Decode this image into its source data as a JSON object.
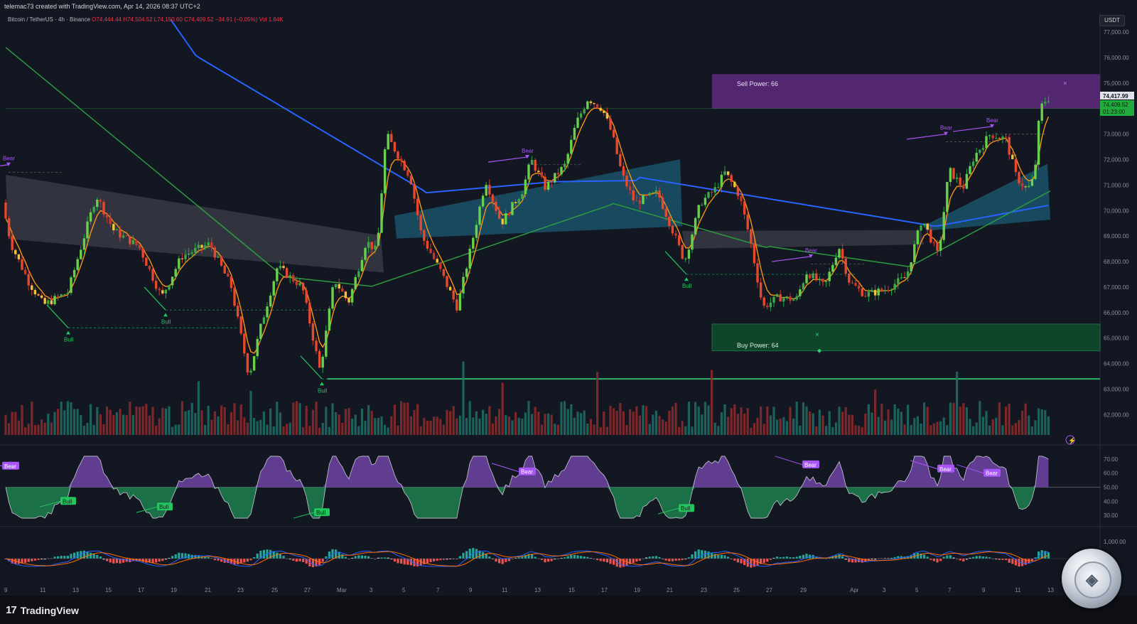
{
  "header": {
    "attribution": "telemac73 created with TradingView.com, Apr 14, 2026 08:37 UTC+2"
  },
  "legend": {
    "symbol": "Bitcoin / TetherUS · 4h · Binance",
    "ohlc": "O74,444.44 H74,504.52 L74,150.60 C74,409.52 −34.91 (−0.05%) Vol 1.64K"
  },
  "currency_badge": "USDT",
  "price_tags": {
    "upper": "74,417.99",
    "current": "74,409.52",
    "countdown": "01:23:00"
  },
  "zones": {
    "sell": "Sell Power: 66",
    "buy": "Buy Power: 64"
  },
  "footer": {
    "brand": "TradingView",
    "logo_mark": "17"
  },
  "colors": {
    "background": "#131722",
    "bull_candle": "#22ab3d",
    "bear_candle": "#d63a2f",
    "ema_fast": "#f7931a",
    "sma_slow": "#2962ff",
    "ma_mid": "#2e9a3f",
    "sell_zone": "#5e2a7e",
    "buy_zone": "#0f4a2c",
    "cloud_gray": "#4a4d57",
    "cloud_teal": "#1b5f78",
    "label_bull": "#22c55e",
    "label_bear": "#a855f7"
  },
  "chart_data": [
    {
      "type": "candlestick",
      "title": "Bitcoin / TetherUS · 4h · Binance",
      "y_axis_labels": [
        "77,000.00",
        "76,000.00",
        "75,000.00",
        "74,000.00",
        "73,000.00",
        "72,000.00",
        "71,000.00",
        "70,000.00",
        "69,000.00",
        "68,000.00",
        "67,000.00",
        "66,000.00",
        "65,000.00",
        "64,000.00",
        "63,000.00",
        "62,000.00"
      ],
      "ylim": [
        61200,
        77200
      ],
      "x_tick_labels": [
        "9",
        "11",
        "13",
        "15",
        "17",
        "19",
        "21",
        "23",
        "25",
        "27",
        "Mar",
        "3",
        "5",
        "7",
        "9",
        "11",
        "13",
        "15",
        "17",
        "19",
        "21",
        "23",
        "25",
        "27",
        "29",
        "Apr",
        "3",
        "5",
        "7",
        "9",
        "11",
        "13"
      ],
      "trend_anchors": [
        {
          "x": 0,
          "y": 71400
        },
        {
          "x": 20,
          "y": 68700
        },
        {
          "x": 45,
          "y": 67200
        },
        {
          "x": 66,
          "y": 66300
        },
        {
          "x": 100,
          "y": 66800
        },
        {
          "x": 140,
          "y": 70600
        },
        {
          "x": 165,
          "y": 69200
        },
        {
          "x": 200,
          "y": 68600
        },
        {
          "x": 232,
          "y": 66600
        },
        {
          "x": 260,
          "y": 68200
        },
        {
          "x": 300,
          "y": 68700
        },
        {
          "x": 330,
          "y": 67000
        },
        {
          "x": 355,
          "y": 63500
        },
        {
          "x": 372,
          "y": 65500
        },
        {
          "x": 395,
          "y": 67800
        },
        {
          "x": 430,
          "y": 67000
        },
        {
          "x": 455,
          "y": 63700
        },
        {
          "x": 475,
          "y": 67300
        },
        {
          "x": 495,
          "y": 66400
        },
        {
          "x": 520,
          "y": 68800
        },
        {
          "x": 535,
          "y": 68400
        },
        {
          "x": 548,
          "y": 73000
        },
        {
          "x": 562,
          "y": 72300
        },
        {
          "x": 582,
          "y": 71300
        },
        {
          "x": 598,
          "y": 69000
        },
        {
          "x": 625,
          "y": 67600
        },
        {
          "x": 648,
          "y": 66200
        },
        {
          "x": 666,
          "y": 68400
        },
        {
          "x": 688,
          "y": 71200
        },
        {
          "x": 710,
          "y": 69500
        },
        {
          "x": 740,
          "y": 70800
        },
        {
          "x": 752,
          "y": 72000
        },
        {
          "x": 772,
          "y": 70900
        },
        {
          "x": 800,
          "y": 71800
        },
        {
          "x": 815,
          "y": 73400
        },
        {
          "x": 832,
          "y": 74400
        },
        {
          "x": 852,
          "y": 74000
        },
        {
          "x": 866,
          "y": 73000
        },
        {
          "x": 880,
          "y": 71400
        },
        {
          "x": 898,
          "y": 70300
        },
        {
          "x": 930,
          "y": 70700
        },
        {
          "x": 950,
          "y": 69300
        },
        {
          "x": 968,
          "y": 68000
        },
        {
          "x": 990,
          "y": 70300
        },
        {
          "x": 1010,
          "y": 70800
        },
        {
          "x": 1025,
          "y": 71500
        },
        {
          "x": 1045,
          "y": 70600
        },
        {
          "x": 1060,
          "y": 68900
        },
        {
          "x": 1078,
          "y": 66200
        },
        {
          "x": 1100,
          "y": 66600
        },
        {
          "x": 1125,
          "y": 66500
        },
        {
          "x": 1140,
          "y": 67600
        },
        {
          "x": 1165,
          "y": 67000
        },
        {
          "x": 1185,
          "y": 68600
        },
        {
          "x": 1200,
          "y": 67200
        },
        {
          "x": 1222,
          "y": 66700
        },
        {
          "x": 1250,
          "y": 66900
        },
        {
          "x": 1280,
          "y": 67400
        },
        {
          "x": 1302,
          "y": 69700
        },
        {
          "x": 1325,
          "y": 68200
        },
        {
          "x": 1340,
          "y": 71600
        },
        {
          "x": 1360,
          "y": 70900
        },
        {
          "x": 1375,
          "y": 72100
        },
        {
          "x": 1398,
          "y": 73000
        },
        {
          "x": 1420,
          "y": 72800
        },
        {
          "x": 1435,
          "y": 71300
        },
        {
          "x": 1450,
          "y": 70800
        },
        {
          "x": 1460,
          "y": 71300
        },
        {
          "x": 1468,
          "y": 74000
        },
        {
          "x": 1478,
          "y": 74410
        }
      ],
      "annotations": {
        "bull": [
          {
            "x": 96,
            "y": 65200
          },
          {
            "x": 233,
            "y": 65900
          },
          {
            "x": 453,
            "y": 63200
          },
          {
            "x": 966,
            "y": 67300
          }
        ],
        "bear": [
          {
            "x": 12,
            "y": 71800
          },
          {
            "x": 742,
            "y": 72100
          },
          {
            "x": 1141,
            "y": 68200
          },
          {
            "x": 1331,
            "y": 73000
          },
          {
            "x": 1396,
            "y": 73300
          }
        ]
      },
      "zones": {
        "sell": [
          74000,
          75350
        ],
        "buy": [
          64500,
          65550
        ]
      },
      "support_line": 63400
    },
    {
      "type": "bar",
      "title": "",
      "series": [
        {
          "name": "Volume",
          "values": []
        }
      ]
    },
    {
      "type": "area",
      "title": "",
      "y_axis_labels": [
        "70.00",
        "60.00",
        "50.00",
        "40.00",
        "30.00"
      ],
      "ylim": [
        25,
        75
      ],
      "midline": 50,
      "labels": {
        "bull": [
          {
            "x": 96,
            "v": 40
          },
          {
            "x": 232,
            "v": 36
          },
          {
            "x": 453,
            "v": 32
          },
          {
            "x": 966,
            "v": 35
          }
        ],
        "bear": [
          {
            "x": 15,
            "v": 65
          },
          {
            "x": 742,
            "v": 61
          },
          {
            "x": 1141,
            "v": 66
          },
          {
            "x": 1331,
            "v": 63
          },
          {
            "x": 1396,
            "v": 60
          }
        ]
      }
    },
    {
      "type": "histogram",
      "title": "",
      "y_axis_labels": [
        "1,000.00"
      ]
    }
  ],
  "annotation_text": {
    "bull": "Bull",
    "bear": "Bear"
  }
}
